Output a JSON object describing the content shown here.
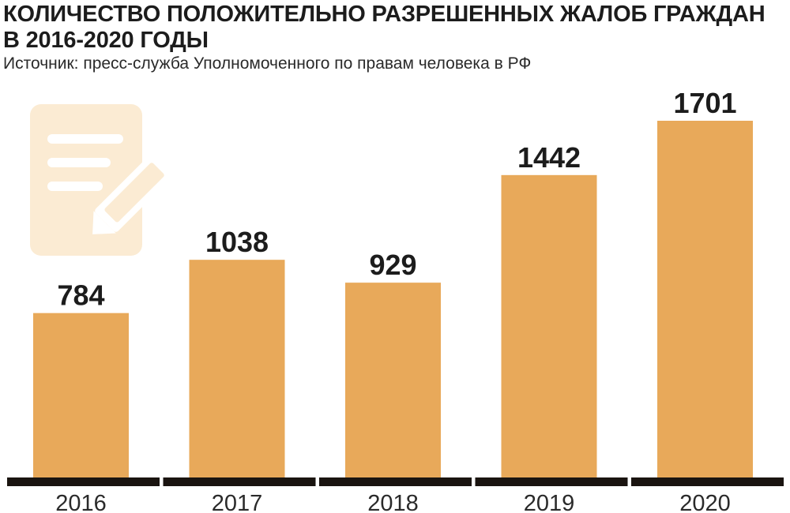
{
  "chart_data": {
    "type": "bar",
    "title": "КОЛИЧЕСТВО ПОЛОЖИТЕЛЬНО РАЗРЕШЕННЫХ ЖАЛОБ ГРАЖДАН В 2016-2020 ГОДЫ",
    "subtitle": "Источник: пресс-служба Уполномоченного по правам человека в РФ",
    "categories": [
      "2016",
      "2017",
      "2018",
      "2019",
      "2020"
    ],
    "values": [
      784,
      1038,
      929,
      1442,
      1701
    ],
    "xlabel": "",
    "ylabel": "",
    "ylim": [
      0,
      1701
    ],
    "grid": false,
    "legend": "none",
    "colors": {
      "bar": "#E8A95A",
      "baseline": "#1a1410",
      "text": "#1c1c1c",
      "icon": "#FBEBD3"
    },
    "decoration_icon": "document-pen-icon"
  }
}
